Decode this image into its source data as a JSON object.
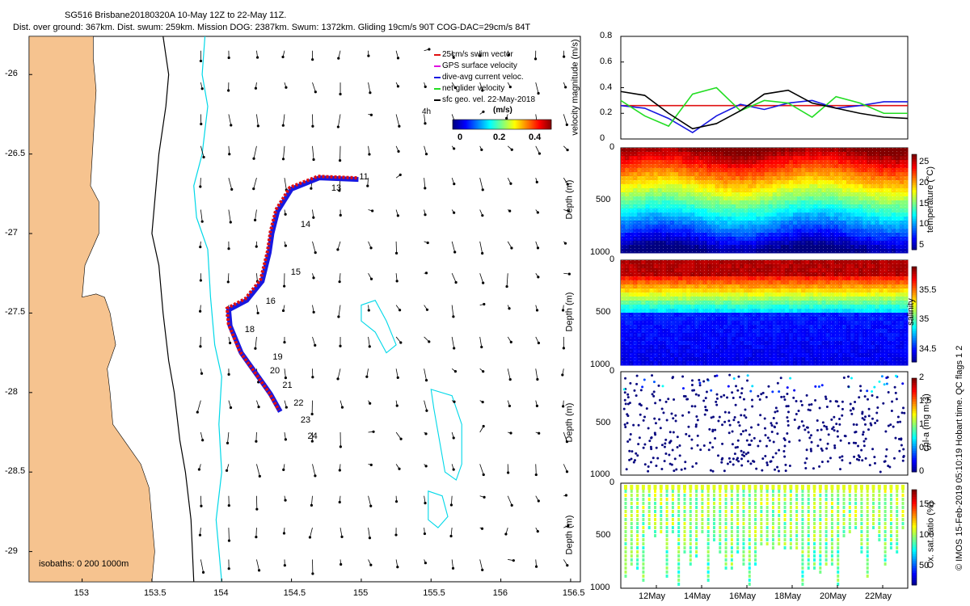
{
  "header": {
    "title": "SG516 Brisbane20180320A 10-May 12Z to 22-May 11Z.",
    "subtitle": "Dist. over ground: 367km. Dist. swum: 259km. Mission DOG: 2387km. Swum: 1372km. Gliding 19cm/s 90T COG-DAC=29cm/s 84T"
  },
  "side_label": "© IMOS 15-Feb-2019 05:10:19 Hobart time. QC flags 1 2",
  "colors": {
    "land": "#f6c38f",
    "isobath_200": "#000000",
    "isobath_1000": "#00d8e8",
    "track_red": "#e01010",
    "track_blue": "#1818e0",
    "net": "#22dd22",
    "dac": "#0000ff"
  },
  "chart_data": [
    {
      "type": "map",
      "name": "glider track map",
      "x_ticks": [
        "153",
        "153.5",
        "154",
        "154.5",
        "155",
        "155.5",
        "156",
        "156.5"
      ],
      "x_values": [
        153,
        153.5,
        154,
        154.5,
        155,
        155.5,
        156,
        156.5
      ],
      "y_ticks": [
        "-26",
        "-26.5",
        "-27",
        "-27.5",
        "-28",
        "-28.5",
        "-29"
      ],
      "y_values": [
        -26,
        -26.5,
        -27,
        -27.5,
        -28,
        -28.5,
        -29
      ],
      "xlim": [
        152.62,
        156.57
      ],
      "ylim": [
        -29.19,
        -25.76
      ],
      "legend": [
        {
          "label": "25cm/s swim vector",
          "color": "#e01010"
        },
        {
          "label": "GPS surface velocity",
          "color": "#e010e0"
        },
        {
          "label": "dive-avg current veloc.",
          "color": "#1818e0"
        },
        {
          "label": "net glider velocity",
          "color": "#22dd22"
        },
        {
          "label": "sfc geo. vel. 22-May-2018",
          "color": "#000000"
        }
      ],
      "legend_hour": "4h",
      "colorbar_title": "(m/s)",
      "colorbar_ticks": [
        "0",
        "0.2",
        "0.4"
      ],
      "isobath_label": "isobaths: 0   200   1000m",
      "track": [
        [
          154.98,
          -26.66
        ],
        [
          154.7,
          -26.65
        ],
        [
          154.5,
          -26.72
        ],
        [
          154.4,
          -26.86
        ],
        [
          154.36,
          -27.0
        ],
        [
          154.34,
          -27.12
        ],
        [
          154.29,
          -27.3
        ],
        [
          154.18,
          -27.42
        ],
        [
          154.05,
          -27.48
        ],
        [
          154.06,
          -27.58
        ],
        [
          154.14,
          -27.75
        ],
        [
          154.27,
          -27.91
        ],
        [
          154.35,
          -28.01
        ],
        [
          154.42,
          -28.12
        ]
      ],
      "track_labels": [
        {
          "text": "11",
          "lon": 155.02,
          "lat": -26.65
        },
        {
          "text": "13",
          "lon": 154.82,
          "lat": -26.72
        },
        {
          "text": "14",
          "lon": 154.6,
          "lat": -26.95
        },
        {
          "text": "15",
          "lon": 154.53,
          "lat": -27.25
        },
        {
          "text": "16",
          "lon": 154.35,
          "lat": -27.43
        },
        {
          "text": "18",
          "lon": 154.2,
          "lat": -27.61
        },
        {
          "text": "19",
          "lon": 154.4,
          "lat": -27.78
        },
        {
          "text": "20",
          "lon": 154.38,
          "lat": -27.87
        },
        {
          "text": "21",
          "lon": 154.47,
          "lat": -27.96
        },
        {
          "text": "22",
          "lon": 154.55,
          "lat": -28.07
        },
        {
          "text": "23",
          "lon": 154.6,
          "lat": -28.18
        },
        {
          "text": "24",
          "lon": 154.65,
          "lat": -28.28
        }
      ]
    },
    {
      "type": "line",
      "name": "velocity magnitude",
      "ylabel": "velocity magnitude (m/s)",
      "y_ticks": [
        "0",
        "0.2",
        "0.4",
        "0.6",
        "0.8"
      ],
      "y_values": [
        0,
        0.2,
        0.4,
        0.6,
        0.8
      ],
      "ylim": [
        0,
        0.8
      ],
      "series": [
        {
          "name": "swim",
          "color": "#e01010",
          "values": [
            0.26,
            0.26,
            0.26,
            0.26,
            0.26,
            0.26,
            0.26,
            0.26,
            0.26,
            0.26,
            0.26,
            0.26,
            0.26
          ]
        },
        {
          "name": "dive-avg current",
          "color": "#1818e0",
          "values": [
            0.26,
            0.24,
            0.16,
            0.05,
            0.18,
            0.27,
            0.23,
            0.28,
            0.3,
            0.24,
            0.26,
            0.29,
            0.29
          ]
        },
        {
          "name": "net",
          "color": "#22dd22",
          "values": [
            0.3,
            0.18,
            0.1,
            0.35,
            0.4,
            0.22,
            0.3,
            0.28,
            0.17,
            0.33,
            0.28,
            0.2,
            0.2
          ]
        },
        {
          "name": "geostrophic",
          "color": "#000000",
          "values": [
            0.37,
            0.34,
            0.2,
            0.08,
            0.12,
            0.22,
            0.35,
            0.38,
            0.28,
            0.24,
            0.2,
            0.17,
            0.16
          ]
        }
      ]
    },
    {
      "type": "heatmap",
      "name": "temperature",
      "ylabel": "Depth (m)",
      "y_ticks": [
        "0",
        "500",
        "1000"
      ],
      "colorbar_label": "temperature (°C)",
      "colorbar_ticks": [
        "25",
        "20",
        "15",
        "10",
        "5"
      ],
      "colorbar_values": [
        25,
        20,
        15,
        10,
        5
      ],
      "colorbar_range": [
        4,
        27
      ]
    },
    {
      "type": "heatmap",
      "name": "salinity",
      "ylabel": "Depth (m)",
      "y_ticks": [
        "0",
        "500",
        "1000"
      ],
      "colorbar_label": "salinity",
      "colorbar_ticks": [
        "35.5",
        "35",
        "34.5"
      ],
      "colorbar_values": [
        35.5,
        35,
        34.5
      ],
      "colorbar_range": [
        34.3,
        35.9
      ]
    },
    {
      "type": "scatter",
      "name": "chlorophyll",
      "ylabel": "Depth (m)",
      "y_ticks": [
        "0",
        "500",
        "1000"
      ],
      "colorbar_label": "chl-a (mg m-3)",
      "colorbar_ticks": [
        "2",
        "1.5",
        "1",
        "0.5",
        "0"
      ],
      "colorbar_values": [
        2,
        1.5,
        1,
        0.5,
        0
      ],
      "colorbar_range": [
        0,
        2
      ]
    },
    {
      "type": "scatter",
      "name": "oxygen",
      "ylabel": "Depth (m)",
      "y_ticks": [
        "0",
        "500",
        "1000"
      ],
      "colorbar_label": "Ox. sat. ratio (%)",
      "colorbar_ticks": [
        "150",
        "100",
        "50"
      ],
      "colorbar_values": [
        150,
        100,
        50
      ],
      "colorbar_range": [
        20,
        175
      ],
      "x_ticks": [
        "12May",
        "14May",
        "16May",
        "18May",
        "20May",
        "22May"
      ]
    }
  ]
}
